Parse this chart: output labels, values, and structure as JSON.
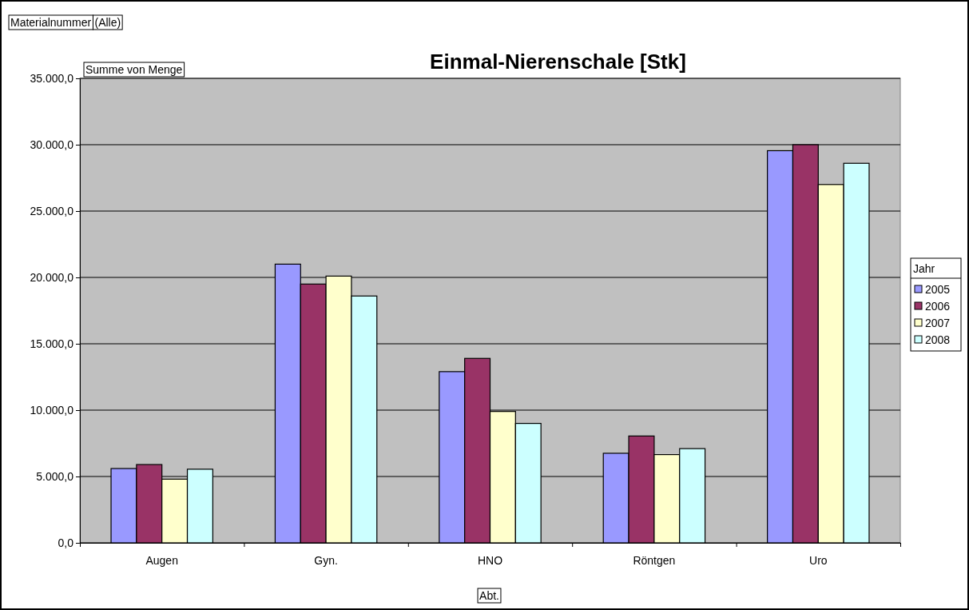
{
  "chart_data": {
    "type": "bar",
    "title": "Einmal-Nierenschale [Stk]",
    "xlabel": "Abt.",
    "ylabel": "Summe von Menge",
    "legend_title": "Jahr",
    "annotations": [
      "Materialnummer",
      "(Alle)"
    ],
    "categories": [
      "Augen",
      "Gyn.",
      "HNO",
      "Röntgen",
      "Uro"
    ],
    "series": [
      {
        "name": "2005",
        "color": "#9999ff",
        "values": [
          5600,
          21000,
          12900,
          6750,
          29550
        ]
      },
      {
        "name": "2006",
        "color": "#993366",
        "values": [
          5900,
          19500,
          13900,
          8050,
          30000
        ]
      },
      {
        "name": "2007",
        "color": "#ffffcc",
        "values": [
          4800,
          20100,
          9900,
          6650,
          27000
        ]
      },
      {
        "name": "2008",
        "color": "#ccffff",
        "values": [
          5550,
          18600,
          9000,
          7100,
          28600
        ]
      }
    ],
    "ylim": [
      0,
      35000
    ],
    "yticks": [
      {
        "value": 0,
        "label": "0,0"
      },
      {
        "value": 5000,
        "label": "5.000,0"
      },
      {
        "value": 10000,
        "label": "10.000,0"
      },
      {
        "value": 15000,
        "label": "15.000,0"
      },
      {
        "value": 20000,
        "label": "20.000,0"
      },
      {
        "value": 25000,
        "label": "25.000,0"
      },
      {
        "value": 30000,
        "label": "30.000,0"
      },
      {
        "value": 35000,
        "label": "35.000,0"
      }
    ],
    "grid": "y",
    "legend": "right"
  }
}
